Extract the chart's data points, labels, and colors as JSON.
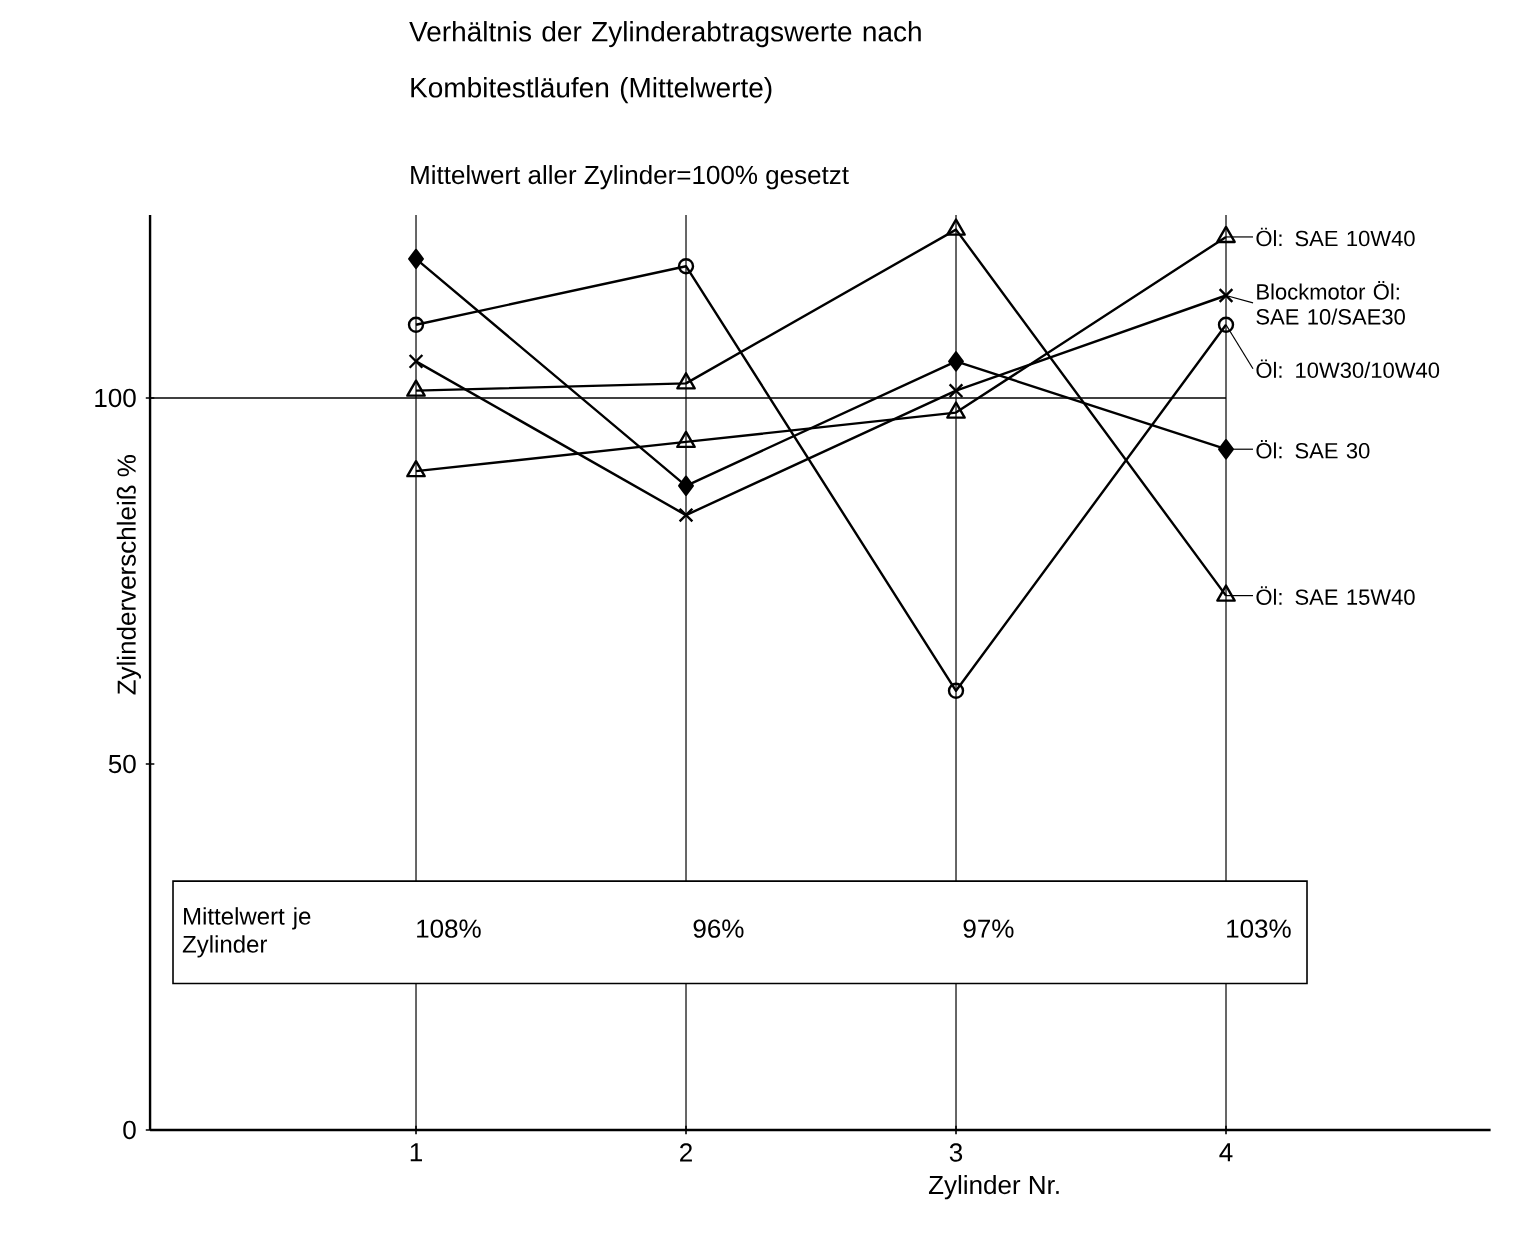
{
  "chart_data": {
    "type": "line",
    "title": "Verhältnis der Zylinderabtragswerte nach Kombitestläufen (Mittelwerte)",
    "subtitle": "Mittelwert aller Zylinder=100% gesetzt",
    "xlabel": "Zylinder Nr.",
    "ylabel": "Zylinderverschleiß %",
    "categories": [
      "1",
      "2",
      "3",
      "4"
    ],
    "ylim": [
      0,
      125
    ],
    "yticks": [
      0,
      50,
      100
    ],
    "grid": "x",
    "legend": "right",
    "line_style": "solid",
    "ref_lines": [
      {
        "axis": "y",
        "value": 100,
        "label": null
      }
    ],
    "annotations": [
      "Mittelwert je Zylinder",
      "108%",
      "96%",
      "97%",
      "103%"
    ],
    "series": [
      {
        "name": "Öl: SAE 10W40",
        "color": "#000000",
        "marker": "triangle",
        "values": [
          90,
          94,
          98,
          122
        ]
      },
      {
        "name": "Blockmotor Öl: SAE 10/SAE30",
        "color": "#000000",
        "marker": "cross",
        "values": [
          105,
          84,
          101,
          114
        ]
      },
      {
        "name": "Öl: 10W30/10W40",
        "color": "#000000",
        "marker": "circle",
        "values": [
          110,
          118,
          60,
          110
        ]
      },
      {
        "name": "Öl: SAE 30",
        "color": "#000000",
        "marker": "diamond",
        "values": [
          119,
          88,
          105,
          93
        ]
      },
      {
        "name": "Öl: SAE 15W40",
        "color": "#000000",
        "marker": "triangle",
        "values": [
          101,
          102,
          123,
          73
        ]
      }
    ]
  }
}
